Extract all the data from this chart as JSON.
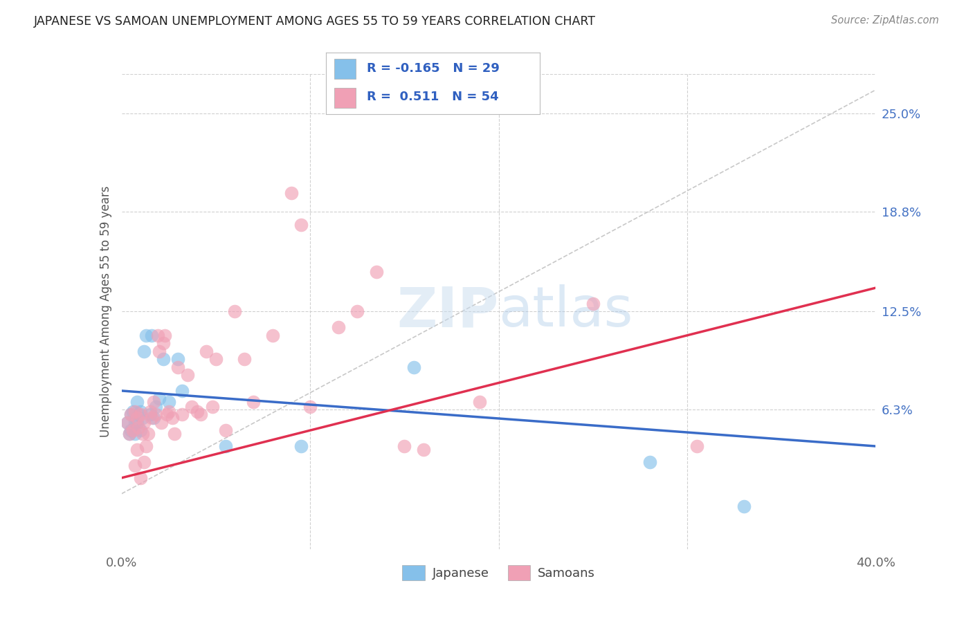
{
  "title": "JAPANESE VS SAMOAN UNEMPLOYMENT AMONG AGES 55 TO 59 YEARS CORRELATION CHART",
  "source": "Source: ZipAtlas.com",
  "ylabel": "Unemployment Among Ages 55 to 59 years",
  "ytick_labels": [
    "25.0%",
    "18.8%",
    "12.5%",
    "6.3%"
  ],
  "ytick_values": [
    0.25,
    0.188,
    0.125,
    0.063
  ],
  "xmin": 0.0,
  "xmax": 0.4,
  "ymin": -0.025,
  "ymax": 0.275,
  "watermark_zip": "ZIP",
  "watermark_atlas": "atlas",
  "japanese_color": "#85C0EA",
  "samoan_color": "#F0A0B5",
  "trend_japanese_color": "#3A6CC8",
  "trend_samoan_color": "#E03050",
  "dashed_line_color": "#C8C8C8",
  "legend_label_j": "R = -0.165  N = 29",
  "legend_label_s": "R =  0.511  N = 54",
  "legend_bottom_j": "Japanese",
  "legend_bottom_s": "Samoans",
  "japanese_x": [
    0.003,
    0.004,
    0.005,
    0.005,
    0.006,
    0.007,
    0.007,
    0.008,
    0.008,
    0.009,
    0.01,
    0.01,
    0.011,
    0.012,
    0.013,
    0.015,
    0.016,
    0.017,
    0.018,
    0.02,
    0.022,
    0.025,
    0.03,
    0.032,
    0.055,
    0.095,
    0.155,
    0.28,
    0.33
  ],
  "japanese_y": [
    0.055,
    0.048,
    0.06,
    0.05,
    0.062,
    0.055,
    0.048,
    0.068,
    0.055,
    0.06,
    0.062,
    0.05,
    0.058,
    0.1,
    0.11,
    0.06,
    0.11,
    0.058,
    0.065,
    0.07,
    0.095,
    0.068,
    0.095,
    0.075,
    0.04,
    0.04,
    0.09,
    0.03,
    0.002
  ],
  "samoan_x": [
    0.003,
    0.004,
    0.005,
    0.006,
    0.007,
    0.007,
    0.008,
    0.008,
    0.009,
    0.01,
    0.01,
    0.011,
    0.012,
    0.012,
    0.013,
    0.014,
    0.015,
    0.016,
    0.017,
    0.018,
    0.019,
    0.02,
    0.021,
    0.022,
    0.023,
    0.024,
    0.025,
    0.027,
    0.028,
    0.03,
    0.032,
    0.035,
    0.037,
    0.04,
    0.042,
    0.045,
    0.048,
    0.05,
    0.055,
    0.06,
    0.065,
    0.07,
    0.08,
    0.09,
    0.095,
    0.1,
    0.115,
    0.125,
    0.135,
    0.15,
    0.16,
    0.19,
    0.25,
    0.305
  ],
  "samoan_y": [
    0.055,
    0.048,
    0.06,
    0.05,
    0.062,
    0.028,
    0.058,
    0.038,
    0.052,
    0.06,
    0.02,
    0.048,
    0.055,
    0.03,
    0.04,
    0.048,
    0.062,
    0.058,
    0.068,
    0.06,
    0.11,
    0.1,
    0.055,
    0.105,
    0.11,
    0.06,
    0.062,
    0.058,
    0.048,
    0.09,
    0.06,
    0.085,
    0.065,
    0.062,
    0.06,
    0.1,
    0.065,
    0.095,
    0.05,
    0.125,
    0.095,
    0.068,
    0.11,
    0.2,
    0.18,
    0.065,
    0.115,
    0.125,
    0.15,
    0.04,
    0.038,
    0.068,
    0.13,
    0.04
  ],
  "trend_j_x0": 0.0,
  "trend_j_y0": 0.075,
  "trend_j_x1": 0.4,
  "trend_j_y1": 0.04,
  "trend_s_x0": 0.0,
  "trend_s_y0": 0.02,
  "trend_s_x1": 0.4,
  "trend_s_y1": 0.14
}
